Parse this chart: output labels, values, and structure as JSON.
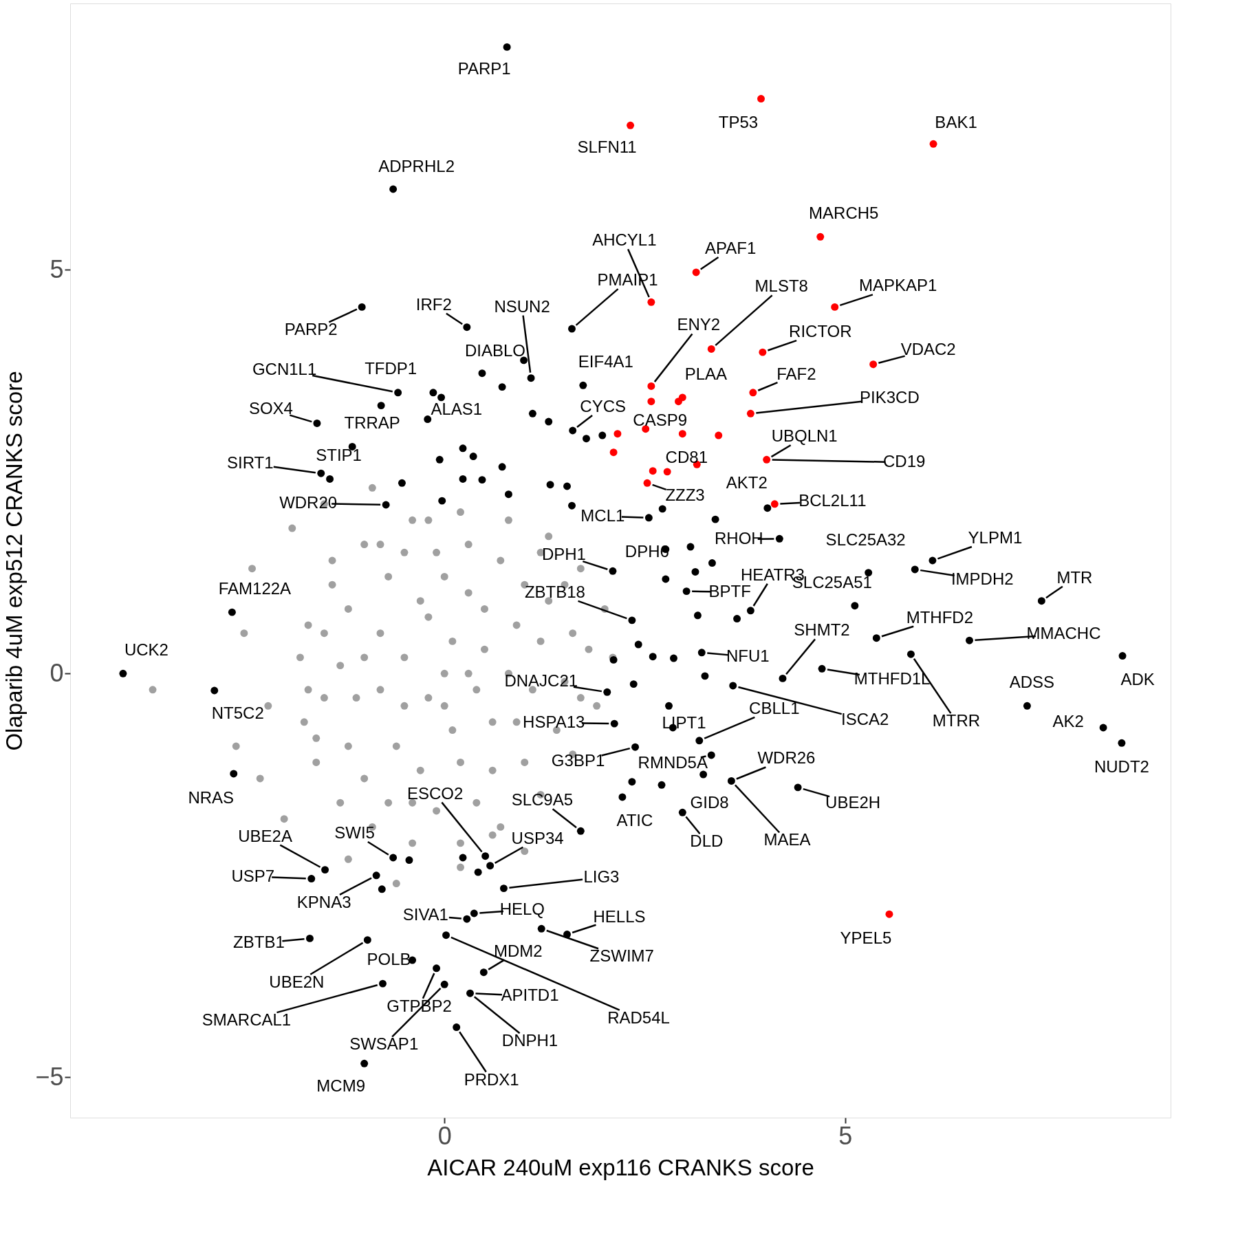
{
  "chart_data": {
    "type": "scatter",
    "xlabel": "AICAR 240uM exp116 CRANKS score",
    "ylabel": "Olaparib 4uM exp512 CRANKS score",
    "xlim": [
      -4.67,
      9.06
    ],
    "ylim": [
      -5.5,
      8.3
    ],
    "xticks": [
      0,
      5
    ],
    "yticks": [
      -5,
      0,
      5
    ],
    "grid": false,
    "marker": "circle",
    "series": [
      {
        "color": "#a0a0a0",
        "x": [
          -1.8,
          -1.75,
          -1.6,
          -1.3,
          -0.9,
          -0.4,
          0.2,
          0.7,
          1.2,
          1.6,
          1.9,
          2.1,
          2.0,
          1.7,
          1.3,
          0.8,
          0.2,
          -0.4,
          -1.0,
          -1.4,
          -1.7,
          0,
          0.5,
          -0.5,
          -0.8,
          0.9,
          0.3,
          -0.3,
          1.2,
          -1.1,
          0.6,
          -0.2,
          1.0,
          -0.7,
          0.1,
          1.5,
          -1.3,
          0.4,
          -0.1,
          0.8,
          -0.6,
          -3.64,
          -2.5,
          -2.6,
          -2.3,
          -2.4,
          -2.2,
          -1.9,
          -1.5,
          -1.2,
          -0.6,
          -2.0,
          -0.9,
          0.2,
          1.0,
          -1.5,
          -1.5,
          -1.2,
          -1.2,
          -1.0,
          -1.0,
          -0.8,
          -0.8,
          -0.5,
          -0.5,
          -0.4,
          -0.2,
          -0.1,
          0.0,
          0.1,
          0.2,
          0.3,
          0.4,
          0.5,
          0.6,
          0.7,
          0.9,
          1.0,
          1.1,
          1.3,
          1.4,
          1.6,
          1.7,
          1.8,
          0.0,
          -0.3,
          -1.6,
          0.3,
          -0.7,
          1.2,
          -0.2,
          0.6,
          1.5,
          -1.4,
          -1.7
        ],
        "values": [
          0.2,
          -0.6,
          -1.1,
          -1.6,
          -1.9,
          -2.1,
          -2.1,
          -1.9,
          -1.5,
          -1.0,
          -0.4,
          0.2,
          0.8,
          1.3,
          1.7,
          1.9,
          2.0,
          1.9,
          1.6,
          1.1,
          0.6,
          0,
          0.3,
          -0.4,
          0.5,
          -0.6,
          1.0,
          -1.2,
          0.4,
          -0.3,
          -1.2,
          0.7,
          1.1,
          1.2,
          -0.7,
          -0.1,
          0.1,
          -0.2,
          1.5,
          0.0,
          -0.9,
          -0.2,
          0.5,
          -0.9,
          -1.3,
          1.3,
          -0.4,
          1.8,
          2.1,
          -2.3,
          -2.6,
          -1.8,
          2.3,
          -2.4,
          -2.2,
          0.5,
          -0.3,
          0.8,
          -0.9,
          0.2,
          -1.3,
          1.6,
          -0.2,
          0.2,
          1.5,
          -1.6,
          -0.3,
          -1.7,
          1.2,
          0.4,
          -1.1,
          1.6,
          -1.6,
          0.8,
          -0.6,
          1.4,
          0.6,
          -1.1,
          -0.2,
          0.9,
          -0.7,
          0.5,
          -0.3,
          0.3,
          -0.4,
          0.9,
          -0.8,
          0.0,
          -1.6,
          1.5,
          1.9,
          -2.0,
          1.1,
          1.4,
          -0.2
        ]
      },
      {
        "color": "#000000",
        "x": [
          0.78,
          -0.64,
          -1.03,
          0.28,
          1.59,
          0.99,
          -0.58,
          -0.79,
          -1.59,
          -0.21,
          -1.15,
          -1.54,
          -1.43,
          -0.73,
          -2.65,
          -4.01,
          -2.87,
          -2.63,
          -1.66,
          -1.49,
          -1.68,
          -0.96,
          -0.4,
          -0.77,
          0.28,
          0.02,
          -0.1,
          0.0,
          0.32,
          0.15,
          -1.0,
          0.74,
          1.53,
          1.21,
          0.51,
          0.57,
          2.03,
          2.12,
          2.38,
          3.23,
          2.22,
          2.97,
          3.58,
          4.41,
          3.33,
          2.85,
          3.18,
          3.6,
          3.21,
          5.12,
          4.71,
          5.39,
          5.82,
          6.09,
          5.29,
          5.87,
          7.45,
          6.55,
          8.46,
          7.27,
          8.22,
          8.45,
          4.03,
          4.18,
          3.82,
          3.16,
          2.76,
          2.1,
          2.55,
          -0.14,
          -0.04,
          0.47,
          0.72,
          1.08,
          1.1,
          1.3,
          1.6,
          1.77,
          1.97,
          -0.06,
          0.23,
          0.36,
          0.72,
          0.23,
          0.47,
          -0.53,
          -0.03,
          0.8,
          1.32,
          1.53,
          1.59,
          2.72,
          3.38,
          3.07,
          2.76,
          3.13,
          3.34,
          3.02,
          3.65,
          2.34,
          2.42,
          2.6,
          2.86,
          2.11,
          2.36,
          3.25,
          4.22,
          2.8,
          2.34,
          2.71,
          -0.64,
          -0.85,
          -0.78,
          -0.44,
          0.23,
          0.42,
          1.7,
          0.49,
          1.73,
          0.37
        ],
        "values": [
          7.76,
          6.0,
          4.54,
          4.29,
          4.27,
          3.88,
          3.48,
          3.32,
          3.1,
          3.15,
          2.81,
          2.48,
          2.41,
          2.09,
          0.76,
          0.0,
          -0.21,
          -1.24,
          -2.54,
          -2.43,
          -3.28,
          -3.3,
          -3.55,
          -3.84,
          -3.04,
          -3.24,
          -3.65,
          -3.85,
          -3.96,
          -4.38,
          -4.83,
          -2.66,
          -3.23,
          -3.16,
          -2.26,
          -2.38,
          -0.23,
          -0.62,
          -0.91,
          -1.25,
          -1.53,
          -1.72,
          -1.33,
          -1.41,
          -1.01,
          -0.67,
          -0.83,
          -0.15,
          0.26,
          0.84,
          0.06,
          0.44,
          0.24,
          1.4,
          1.25,
          1.29,
          0.9,
          0.41,
          0.22,
          -0.4,
          -0.67,
          -0.86,
          2.05,
          1.67,
          0.78,
          0.72,
          1.54,
          1.27,
          1.93,
          3.48,
          3.42,
          3.72,
          3.55,
          3.66,
          3.22,
          3.12,
          3.01,
          2.91,
          2.95,
          2.65,
          2.79,
          2.69,
          2.56,
          2.41,
          2.4,
          2.36,
          2.14,
          2.22,
          2.34,
          2.32,
          2.08,
          2.04,
          1.91,
          1.57,
          1.17,
          1.26,
          1.37,
          1.02,
          0.68,
          0.66,
          0.36,
          0.21,
          0.19,
          0.17,
          -0.13,
          -0.03,
          -0.06,
          -0.4,
          -1.34,
          -1.38,
          -2.28,
          -2.5,
          -2.67,
          -2.31,
          -2.28,
          -2.46,
          -1.95,
          -3.7,
          3.57,
          -2.97
        ]
      },
      {
        "color": "#ff0000",
        "x": [
          3.95,
          2.32,
          6.1,
          4.69,
          3.14,
          2.58,
          4.87,
          3.97,
          3.33,
          5.35,
          3.85,
          3.82,
          2.58,
          2.58,
          2.97,
          2.92,
          2.51,
          2.16,
          2.97,
          3.42,
          2.11,
          4.02,
          3.15,
          2.6,
          2.78,
          2.53,
          4.12,
          5.55
        ],
        "values": [
          7.12,
          6.79,
          6.56,
          5.41,
          4.97,
          4.6,
          4.54,
          3.98,
          4.02,
          3.83,
          3.48,
          3.22,
          3.56,
          3.37,
          3.42,
          3.37,
          3.03,
          2.97,
          2.97,
          2.95,
          2.74,
          2.65,
          2.59,
          2.51,
          2.5,
          2.36,
          2.1,
          -2.98
        ]
      }
    ],
    "annotations": [
      {
        "text": "PARP1",
        "x": 0.78,
        "y": 7.76
      },
      {
        "text": "TP53",
        "x": 3.95,
        "y": 7.12
      },
      {
        "text": "SLFN11",
        "x": 2.32,
        "y": 6.79
      },
      {
        "text": "BAK1",
        "x": 6.1,
        "y": 6.56
      },
      {
        "text": "ADPRHL2",
        "x": -0.64,
        "y": 6.0
      },
      {
        "text": "MARCH5",
        "x": 4.69,
        "y": 5.41
      },
      {
        "text": "AHCYL1",
        "x": 2.58,
        "y": 4.6
      },
      {
        "text": "APAF1",
        "x": 3.14,
        "y": 4.97
      },
      {
        "text": "PMAIP1",
        "x": 1.59,
        "y": 4.27
      },
      {
        "text": "MLST8",
        "x": 3.33,
        "y": 4.02
      },
      {
        "text": "MAPKAP1",
        "x": 4.87,
        "y": 4.54
      },
      {
        "text": "IRF2",
        "x": 0.28,
        "y": 4.29
      },
      {
        "text": "NSUN2",
        "x": 1.08,
        "y": 3.66
      },
      {
        "text": "PARP2",
        "x": -1.03,
        "y": 4.54
      },
      {
        "text": "ENY2",
        "x": 2.58,
        "y": 3.56
      },
      {
        "text": "RICTOR",
        "x": 3.97,
        "y": 3.98
      },
      {
        "text": "VDAC2",
        "x": 5.35,
        "y": 3.83
      },
      {
        "text": "DIABLO",
        "x": 0.47,
        "y": 3.72
      },
      {
        "text": "EIF4A1",
        "x": 1.73,
        "y": 3.57
      },
      {
        "text": "GCN1L1",
        "x": -0.58,
        "y": 3.48
      },
      {
        "text": "TFDP1",
        "x": -0.79,
        "y": 3.32
      },
      {
        "text": "PLAA",
        "x": 2.97,
        "y": 3.42
      },
      {
        "text": "FAF2",
        "x": 3.85,
        "y": 3.48
      },
      {
        "text": "PIK3CD",
        "x": 3.82,
        "y": 3.22
      },
      {
        "text": "CYCS",
        "x": 1.6,
        "y": 3.01
      },
      {
        "text": "SOX4",
        "x": -1.59,
        "y": 3.1
      },
      {
        "text": "ALAS1",
        "x": -0.21,
        "y": 3.15
      },
      {
        "text": "TRRAP",
        "x": -1.15,
        "y": 2.81
      },
      {
        "text": "CASP9",
        "x": 2.51,
        "y": 3.03
      },
      {
        "text": "UBQLN1",
        "x": 4.02,
        "y": 2.65
      },
      {
        "text": "STIP1",
        "x": -1.43,
        "y": 2.41
      },
      {
        "text": "SIRT1",
        "x": -1.54,
        "y": 2.48
      },
      {
        "text": "CD81",
        "x": 3.15,
        "y": 2.59
      },
      {
        "text": "CD19",
        "x": 4.02,
        "y": 2.65
      },
      {
        "text": "AKT2",
        "x": 4.03,
        "y": 2.05
      },
      {
        "text": "ZZZ3",
        "x": 2.53,
        "y": 2.36
      },
      {
        "text": "WDR20",
        "x": -0.73,
        "y": 2.09
      },
      {
        "text": "BCL2L11",
        "x": 4.12,
        "y": 2.1
      },
      {
        "text": "MCL1",
        "x": 2.55,
        "y": 1.93
      },
      {
        "text": "RHOH",
        "x": 4.18,
        "y": 1.67
      },
      {
        "text": "SLC25A32",
        "x": 5.29,
        "y": 1.25
      },
      {
        "text": "YLPM1",
        "x": 6.09,
        "y": 1.4
      },
      {
        "text": "DPH6",
        "x": 2.76,
        "y": 1.54
      },
      {
        "text": "DPH1",
        "x": 2.1,
        "y": 1.27
      },
      {
        "text": "HEATR3",
        "x": 3.82,
        "y": 0.78
      },
      {
        "text": "SLC25A51",
        "x": 5.12,
        "y": 0.84
      },
      {
        "text": "IMPDH2",
        "x": 5.87,
        "y": 1.29
      },
      {
        "text": "MTR",
        "x": 7.45,
        "y": 0.9
      },
      {
        "text": "BPTF",
        "x": 3.02,
        "y": 1.02
      },
      {
        "text": "ZBTB18",
        "x": 2.34,
        "y": 0.66
      },
      {
        "text": "FAM122A",
        "x": -2.65,
        "y": 0.76
      },
      {
        "text": "MTHFD2",
        "x": 5.39,
        "y": 0.44
      },
      {
        "text": "SHMT2",
        "x": 4.22,
        "y": -0.06
      },
      {
        "text": "MMACHC",
        "x": 6.55,
        "y": 0.41
      },
      {
        "text": "UCK2",
        "x": -4.01,
        "y": 0.0
      },
      {
        "text": "NFU1",
        "x": 3.21,
        "y": 0.26
      },
      {
        "text": "ADK",
        "x": 8.46,
        "y": 0.22
      },
      {
        "text": "MTHFD1L",
        "x": 4.71,
        "y": 0.06
      },
      {
        "text": "DNAJC21",
        "x": 2.03,
        "y": -0.23
      },
      {
        "text": "ADSS",
        "x": 7.27,
        "y": -0.4
      },
      {
        "text": "NT5C2",
        "x": -2.87,
        "y": -0.21
      },
      {
        "text": "CBLL1",
        "x": 3.18,
        "y": -0.83
      },
      {
        "text": "ISCA2",
        "x": 3.6,
        "y": -0.15
      },
      {
        "text": "LIPT1",
        "x": 2.8,
        "y": -0.4
      },
      {
        "text": "HSPA13",
        "x": 2.12,
        "y": -0.62
      },
      {
        "text": "MTRR",
        "x": 5.82,
        "y": 0.24
      },
      {
        "text": "AK2",
        "x": 8.22,
        "y": -0.67
      },
      {
        "text": "RMND5A",
        "x": 3.33,
        "y": -1.01
      },
      {
        "text": "G3BP1",
        "x": 2.38,
        "y": -0.91
      },
      {
        "text": "WDR26",
        "x": 3.58,
        "y": -1.33
      },
      {
        "text": "NUDT2",
        "x": 8.45,
        "y": -0.86
      },
      {
        "text": "ESCO2",
        "x": 0.51,
        "y": -2.26
      },
      {
        "text": "NRAS",
        "x": -2.63,
        "y": -1.24
      },
      {
        "text": "SLC9A5",
        "x": 1.7,
        "y": -1.95
      },
      {
        "text": "GID8",
        "x": 3.23,
        "y": -1.25
      },
      {
        "text": "UBE2H",
        "x": 4.41,
        "y": -1.41
      },
      {
        "text": "ATIC",
        "x": 2.22,
        "y": -1.53
      },
      {
        "text": "UBE2A",
        "x": -1.49,
        "y": -2.43
      },
      {
        "text": "SWI5",
        "x": -0.64,
        "y": -2.28
      },
      {
        "text": "USP34",
        "x": 0.57,
        "y": -2.38
      },
      {
        "text": "DLD",
        "x": 2.97,
        "y": -1.72
      },
      {
        "text": "MAEA",
        "x": 3.58,
        "y": -1.33
      },
      {
        "text": "USP7",
        "x": -1.66,
        "y": -2.54
      },
      {
        "text": "LIG3",
        "x": 0.74,
        "y": -2.66
      },
      {
        "text": "KPNA3",
        "x": -0.85,
        "y": -2.5
      },
      {
        "text": "HELQ",
        "x": 0.37,
        "y": -2.97
      },
      {
        "text": "SIVA1",
        "x": 0.28,
        "y": -3.04
      },
      {
        "text": "HELLS",
        "x": 1.53,
        "y": -3.23
      },
      {
        "text": "YPEL5",
        "x": 5.55,
        "y": -2.98
      },
      {
        "text": "ZBTB1",
        "x": -1.68,
        "y": -3.28
      },
      {
        "text": "MDM2",
        "x": 0.49,
        "y": -3.7
      },
      {
        "text": "ZSWIM7",
        "x": 1.21,
        "y": -3.16
      },
      {
        "text": "POLB",
        "x": -0.4,
        "y": -3.55
      },
      {
        "text": "UBE2N",
        "x": -0.96,
        "y": -3.3
      },
      {
        "text": "APITD1",
        "x": 0.32,
        "y": -3.96
      },
      {
        "text": "GTPBP2",
        "x": -0.1,
        "y": -3.65
      },
      {
        "text": "SMARCAL1",
        "x": -0.77,
        "y": -3.84
      },
      {
        "text": "RAD54L",
        "x": 0.02,
        "y": -3.24
      },
      {
        "text": "DNPH1",
        "x": 0.32,
        "y": -3.96
      },
      {
        "text": "SWSAP1",
        "x": 0.0,
        "y": -3.85
      },
      {
        "text": "PRDX1",
        "x": 0.15,
        "y": -4.38
      },
      {
        "text": "MCM9",
        "x": -1.0,
        "y": -4.83
      }
    ]
  }
}
